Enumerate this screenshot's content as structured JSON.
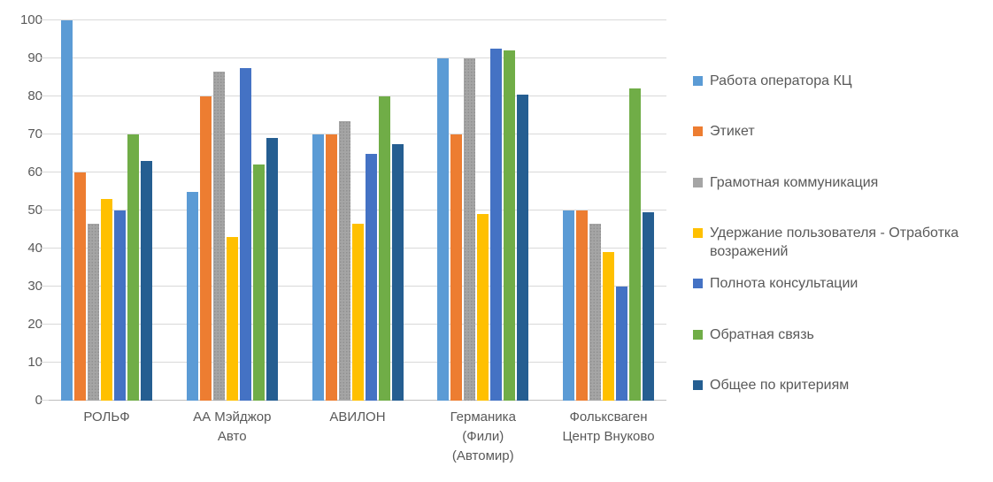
{
  "chart_data": {
    "type": "bar",
    "title": "",
    "xlabel": "",
    "ylabel": "",
    "ylim": [
      0,
      100
    ],
    "grid": true,
    "legend_position": "right",
    "y_ticks": [
      0,
      10,
      20,
      30,
      40,
      50,
      60,
      70,
      80,
      90,
      100
    ],
    "categories": [
      "РОЛЬФ",
      "АА Мэйджор Авто",
      "АВИЛОН",
      "Германика (Фили) (Автомир)",
      "Фольксваген Центр Внуково"
    ],
    "category_label_lines": [
      [
        "РОЛЬФ"
      ],
      [
        "АА Мэйджор",
        "Авто"
      ],
      [
        "АВИЛОН"
      ],
      [
        "Германика",
        "(Фили)",
        "(Автомир)"
      ],
      [
        "Фольксваген",
        "Центр Внуково"
      ]
    ],
    "series": [
      {
        "name": "Работа оператора КЦ",
        "color": "#5B9BD5",
        "values": [
          100,
          55,
          70,
          90,
          50
        ]
      },
      {
        "name": "Этикет",
        "color": "#ED7D31",
        "values": [
          60,
          80,
          70,
          70,
          50
        ]
      },
      {
        "name": "Грамотная коммуникация",
        "color": "#A5A5A5",
        "values": [
          46.5,
          86.5,
          73.5,
          90,
          46.5
        ]
      },
      {
        "name": "Удержание пользователя - Отработка возражений",
        "color": "#FFC000",
        "values": [
          53,
          43,
          46.5,
          49,
          39
        ]
      },
      {
        "name": "Полнота консультации",
        "color": "#4472C4",
        "values": [
          50,
          87.5,
          65,
          92.5,
          30
        ]
      },
      {
        "name": "Обратная связь",
        "color": "#70AD47",
        "values": [
          70,
          62,
          80,
          92,
          82
        ]
      },
      {
        "name": "Общее по критериям",
        "color": "#255E91",
        "values": [
          63,
          69,
          67.5,
          80.5,
          49.5
        ]
      }
    ],
    "colors": {
      "grid": "#D9D9D9",
      "axis": "#BFBFBF",
      "label_text": "#595959"
    }
  }
}
